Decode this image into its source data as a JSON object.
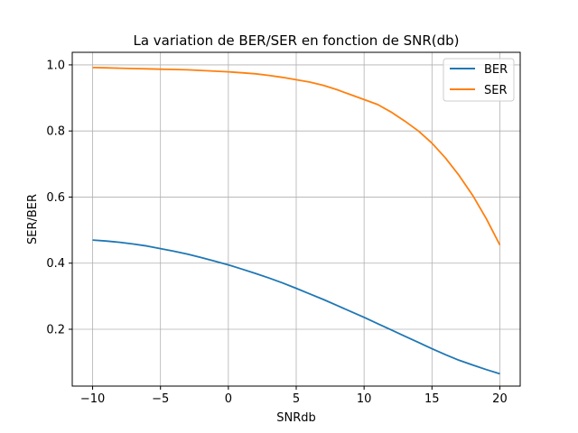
{
  "chart_data": {
    "type": "line",
    "title": "La variation de BER/SER en fonction de SNR(db)",
    "xlabel": "SNRdb",
    "ylabel": "SER/BER",
    "xlim": [
      -11.5,
      21.5
    ],
    "ylim": [
      0.028,
      1.038
    ],
    "xticks": [
      -10,
      -5,
      0,
      5,
      10,
      15,
      20
    ],
    "xtick_labels": [
      "−10",
      "−5",
      "0",
      "5",
      "10",
      "15",
      "20"
    ],
    "yticks": [
      0.2,
      0.4,
      0.6,
      0.8,
      1.0
    ],
    "ytick_labels": [
      "0.2",
      "0.4",
      "0.6",
      "0.8",
      "1.0"
    ],
    "grid": true,
    "legend_position": "top-right",
    "x": [
      -10,
      -9,
      -8,
      -7,
      -6,
      -5,
      -4,
      -3,
      -2,
      -1,
      0,
      1,
      2,
      3,
      4,
      5,
      6,
      7,
      8,
      9,
      10,
      11,
      12,
      13,
      14,
      15,
      16,
      17,
      18,
      19,
      20
    ],
    "series": [
      {
        "name": "BER",
        "color": "#1f77b4",
        "values": [
          0.47,
          0.467,
          0.463,
          0.458,
          0.452,
          0.444,
          0.436,
          0.427,
          0.417,
          0.406,
          0.395,
          0.382,
          0.369,
          0.355,
          0.34,
          0.324,
          0.307,
          0.29,
          0.272,
          0.254,
          0.236,
          0.217,
          0.198,
          0.179,
          0.16,
          0.141,
          0.123,
          0.106,
          0.092,
          0.078,
          0.065
        ]
      },
      {
        "name": "SER",
        "color": "#ff7f0e",
        "values": [
          0.992,
          0.991,
          0.99,
          0.989,
          0.988,
          0.987,
          0.986,
          0.985,
          0.983,
          0.981,
          0.979,
          0.976,
          0.973,
          0.968,
          0.962,
          0.955,
          0.948,
          0.938,
          0.925,
          0.91,
          0.895,
          0.88,
          0.857,
          0.83,
          0.8,
          0.763,
          0.718,
          0.665,
          0.605,
          0.535,
          0.455
        ]
      }
    ]
  }
}
